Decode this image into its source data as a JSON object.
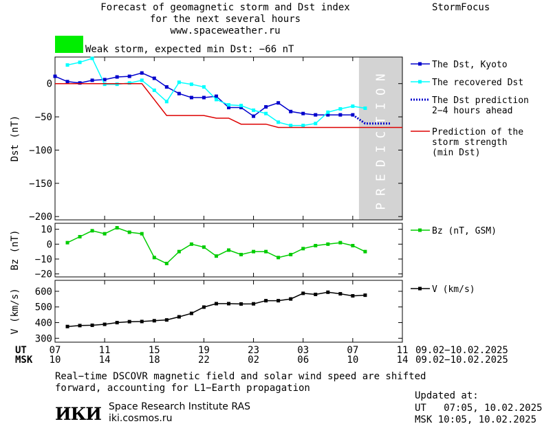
{
  "header": {
    "title_line1": "Forecast of geomagnetic storm and Dst index",
    "title_line2": "for the next several hours",
    "title_line3": "www.spaceweather.ru",
    "brand": "StormFocus"
  },
  "storm_indicator": {
    "color": "#00ee00",
    "text": "Weak storm, expected min Dst: −66 nT"
  },
  "colors": {
    "dst_kyoto": "#0000cc",
    "dst_recovered": "#00ffff",
    "dst_prediction": "#0000cc",
    "storm_strength": "#dd0000",
    "bz": "#00cc00",
    "v": "#000000",
    "prediction_band": "#d3d3d3"
  },
  "chart_data": [
    {
      "type": "line",
      "panel": "dst",
      "ylabel": "Dst (nT)",
      "ylim": [
        -205,
        40
      ],
      "yticks": [
        0,
        -50,
        -100,
        -150,
        -200
      ],
      "ytick_labels": [
        "0",
        "−50",
        "−100",
        "−150",
        "−200"
      ],
      "xlim": [
        0,
        28
      ],
      "prediction_band": {
        "x0": 24.5,
        "x1": 28,
        "label": "PREDICTION"
      },
      "series": [
        {
          "name": "The Dst, Kyoto",
          "color_key": "dst_kyoto",
          "style": "line-square",
          "x": [
            0,
            1,
            2,
            3,
            4,
            5,
            6,
            7,
            8,
            9,
            10,
            11,
            12,
            13,
            14,
            15,
            16,
            17,
            18,
            19,
            20,
            21,
            22,
            23,
            24
          ],
          "y": [
            11,
            3,
            1,
            5,
            6,
            10,
            11,
            16,
            8,
            -5,
            -15,
            -21,
            -21,
            -19,
            -36,
            -36,
            -49,
            -35,
            -29,
            -42,
            -45,
            -47,
            -47,
            -47,
            -47
          ]
        },
        {
          "name": "The recovered Dst",
          "color_key": "dst_recovered",
          "style": "line-square",
          "x": [
            1,
            2,
            3,
            4,
            5,
            6,
            7,
            8,
            9,
            10,
            11,
            12,
            13,
            14,
            15,
            16,
            17,
            18,
            19,
            20,
            21,
            22,
            23,
            24,
            25
          ],
          "y": [
            28,
            32,
            38,
            -1,
            -1,
            1,
            5,
            -10,
            -27,
            2,
            -1,
            -5,
            -24,
            -32,
            -33,
            -40,
            -45,
            -58,
            -63,
            -63,
            -60,
            -43,
            -38,
            -34,
            -37
          ]
        },
        {
          "name": "The Dst prediction\n2−4 hours ahead",
          "color_key": "dst_prediction",
          "style": "dotted",
          "x": [
            24,
            25,
            26,
            27
          ],
          "y": [
            -47,
            -60,
            -60,
            -60
          ]
        },
        {
          "name": "Prediction of the\nstorm strength\n(min Dst)",
          "color_key": "storm_strength",
          "style": "line",
          "x": [
            0,
            7,
            8,
            9,
            10,
            12,
            13,
            14,
            15,
            16,
            17,
            18,
            20,
            22,
            24,
            26,
            28
          ],
          "y": [
            0,
            0,
            -24,
            -48,
            -48,
            -48,
            -52,
            -52,
            -61,
            -61,
            -61,
            -66,
            -66,
            -66,
            -66,
            -66,
            -66
          ]
        }
      ]
    },
    {
      "type": "line",
      "panel": "bz",
      "ylabel": "Bz (nT)",
      "ylim": [
        -22,
        14
      ],
      "yticks": [
        10,
        0,
        -10,
        -20
      ],
      "ytick_labels": [
        "10",
        "0",
        "−10",
        "−20"
      ],
      "xlim": [
        0,
        28
      ],
      "series": [
        {
          "name": "Bz (nT, GSM)",
          "color_key": "bz",
          "style": "line-square",
          "x": [
            1,
            2,
            3,
            4,
            5,
            6,
            7,
            8,
            9,
            10,
            11,
            12,
            13,
            14,
            15,
            16,
            17,
            18,
            19,
            20,
            21,
            22,
            23,
            24,
            25
          ],
          "y": [
            1,
            5,
            9,
            7,
            11,
            8,
            7,
            -9,
            -13,
            -5,
            0,
            -2,
            -8,
            -4,
            -7,
            -5,
            -5,
            -9,
            -7,
            -3,
            -1,
            0,
            1,
            -1,
            -5
          ]
        }
      ]
    },
    {
      "type": "line",
      "panel": "v",
      "ylabel": "V (km/s)",
      "ylim": [
        275,
        670
      ],
      "yticks": [
        600,
        500,
        400,
        300
      ],
      "ytick_labels": [
        "600",
        "500",
        "400",
        "300"
      ],
      "xlim": [
        0,
        28
      ],
      "series": [
        {
          "name": "V (km/s)",
          "color_key": "v",
          "style": "line-square",
          "x": [
            1,
            2,
            3,
            4,
            5,
            6,
            7,
            8,
            9,
            10,
            11,
            12,
            13,
            14,
            15,
            16,
            17,
            18,
            19,
            20,
            21,
            22,
            23,
            24,
            25
          ],
          "y": [
            375,
            381,
            383,
            389,
            400,
            406,
            407,
            412,
            417,
            437,
            459,
            499,
            521,
            521,
            519,
            520,
            540,
            540,
            551,
            587,
            580,
            594,
            584,
            571,
            575
          ]
        }
      ]
    }
  ],
  "x_axis": {
    "ticks": [
      0,
      4,
      8,
      12,
      16,
      20,
      24,
      28
    ],
    "ut_label": "UT",
    "msk_label": "MSK",
    "ut_ticks": [
      "07",
      "11",
      "15",
      "19",
      "23",
      "03",
      "07",
      "11"
    ],
    "msk_ticks": [
      "10",
      "14",
      "18",
      "22",
      "02",
      "06",
      "10",
      "14"
    ],
    "ut_range": "09.02−10.02.2025",
    "msk_range": "09.02−10.02.2025"
  },
  "footer": {
    "note_line1": "Real−time DSCOVR magnetic field and solar wind speed are shifted",
    "note_line2": "forward, accounting for L1−Earth propagation",
    "logo": "ИКИ",
    "institute": "Space Research Institute RAS",
    "site": "iki.cosmos.ru",
    "updated_label": "Updated at:",
    "updated_ut": "UT   07:05, 10.02.2025",
    "updated_msk": "MSK 10:05, 10.02.2025"
  }
}
